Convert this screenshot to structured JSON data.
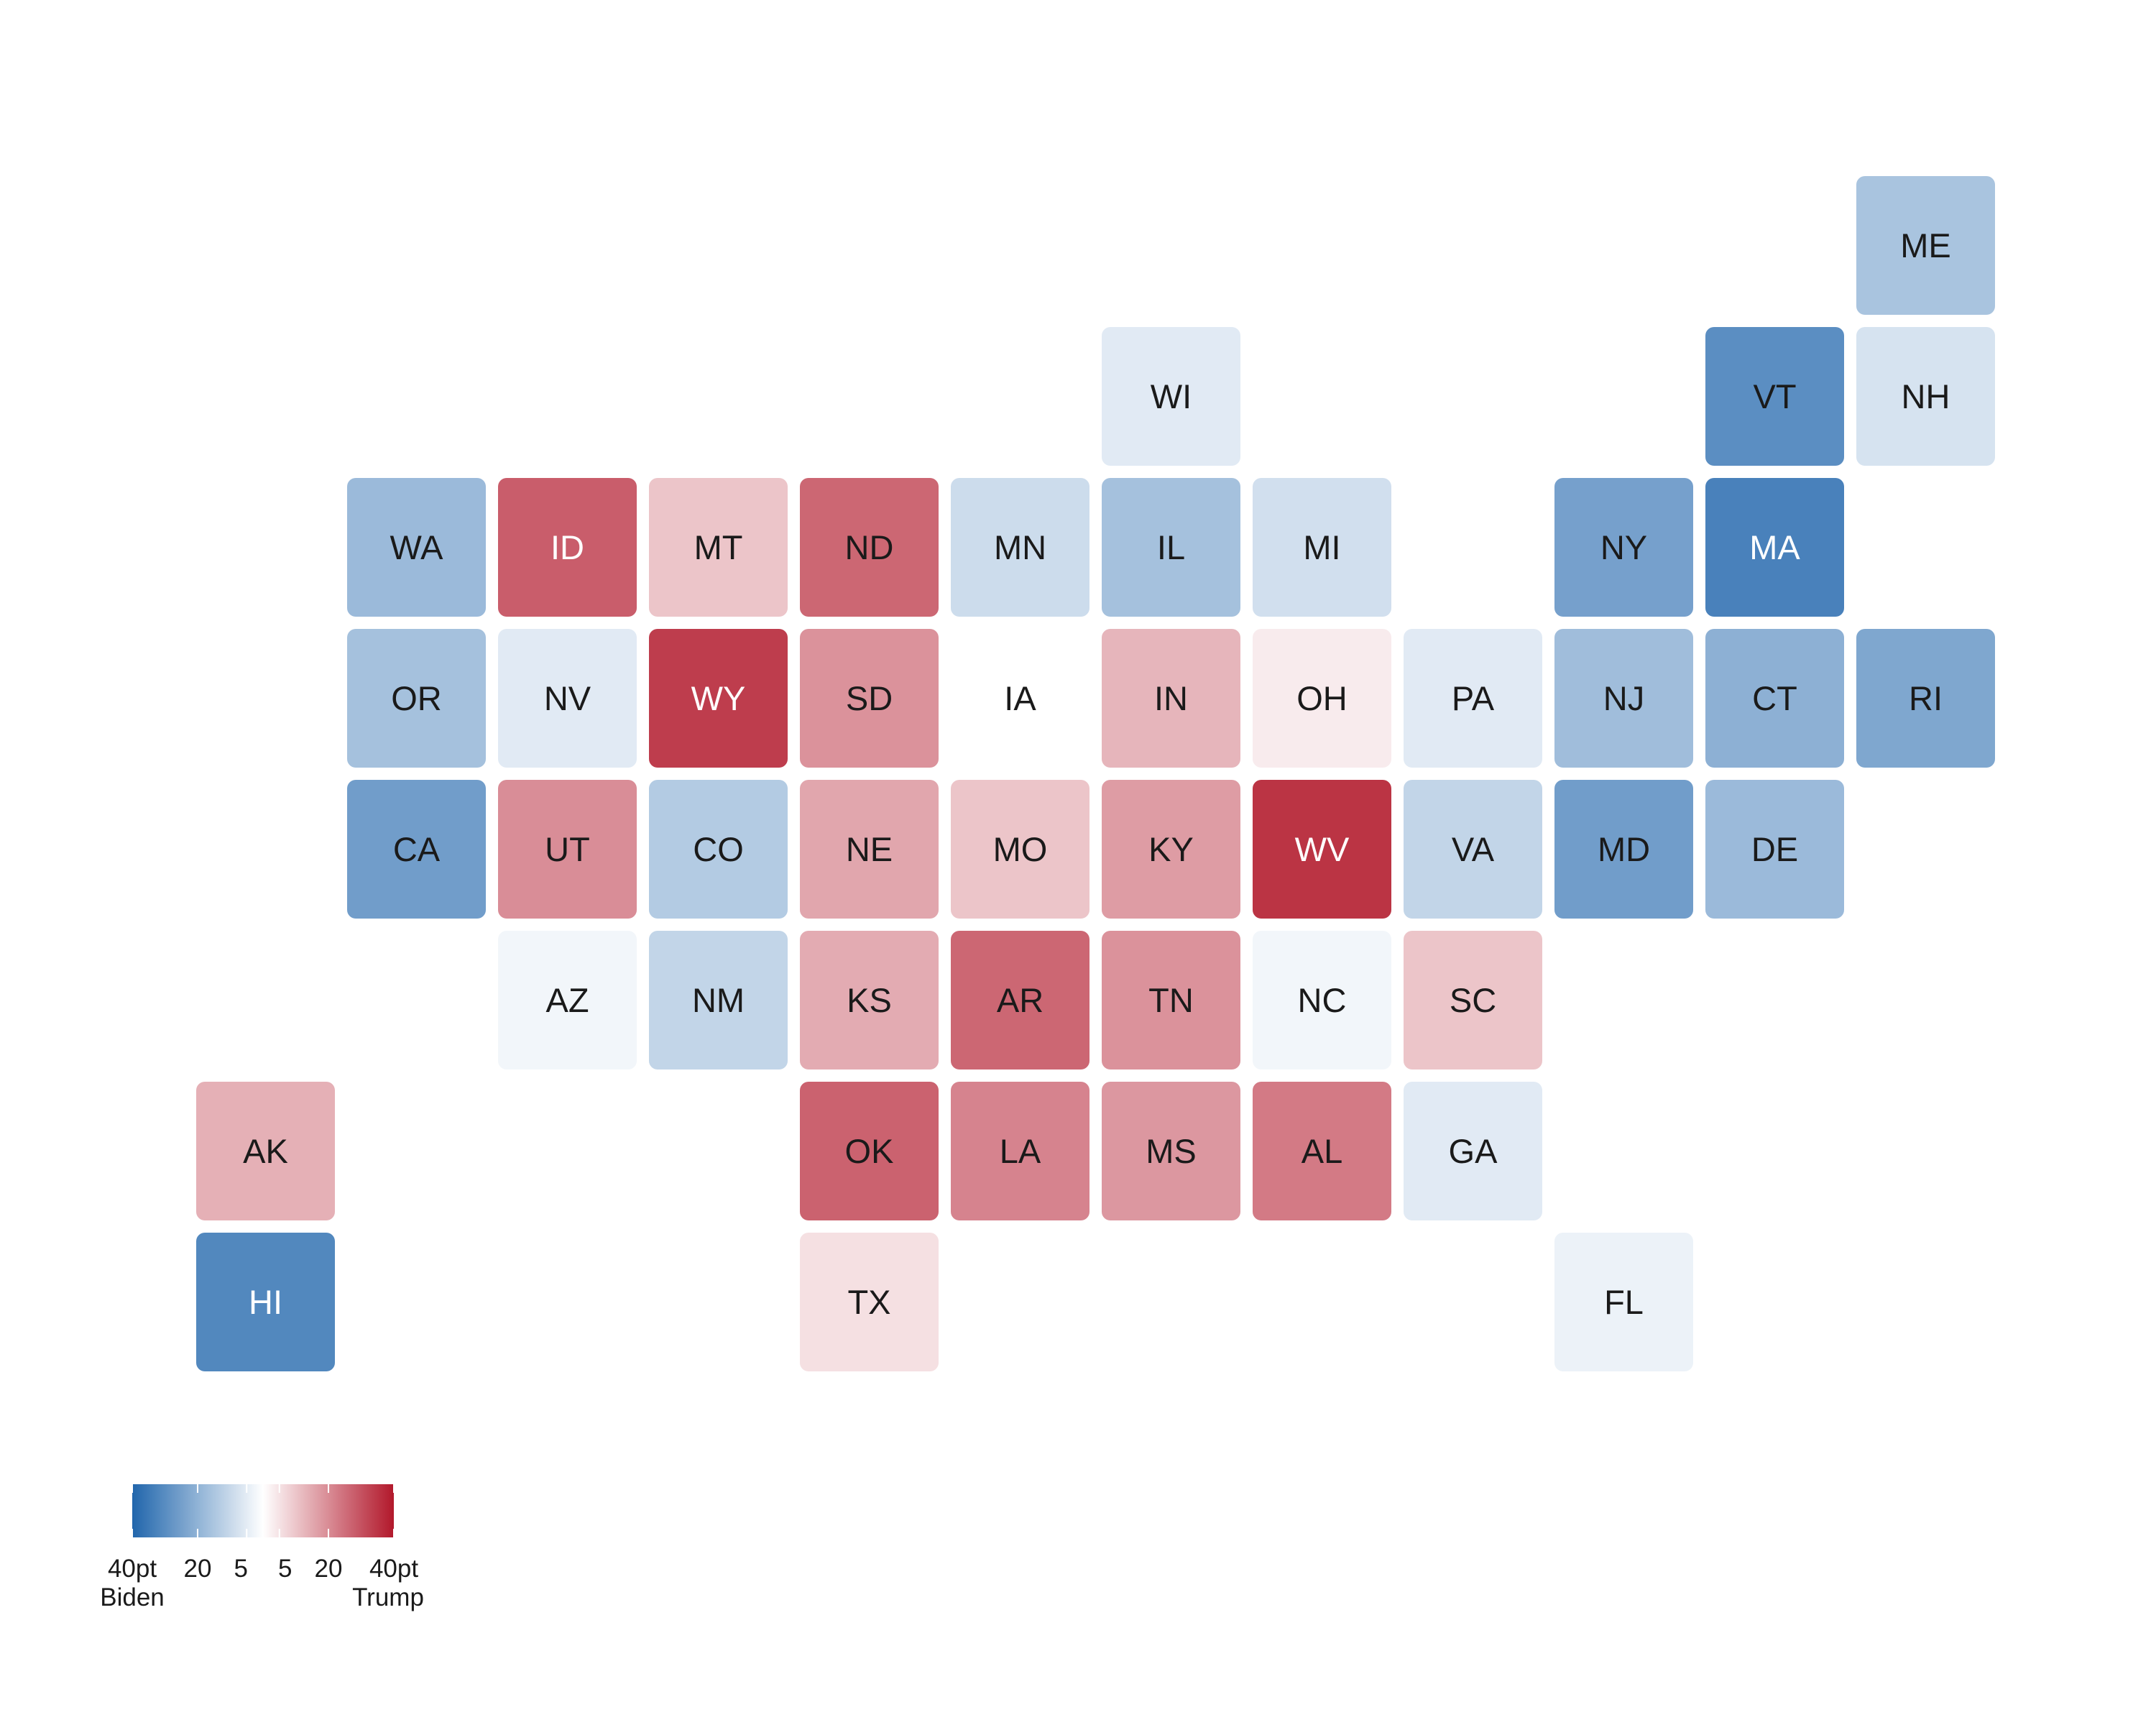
{
  "map_data": {
    "type": "tile-grid-choropleth",
    "value_meaning": "margin in points; negative = Biden, positive = Trump",
    "color_scale": {
      "min": -40,
      "max": 40,
      "low_color": "#2166ac",
      "mid_color": "#ffffff",
      "high_color": "#b2182b"
    },
    "tiles": [
      {
        "abbr": "ME",
        "col": 11,
        "row": 0,
        "value": -16
      },
      {
        "abbr": "WI",
        "col": 6,
        "row": 1,
        "value": -5
      },
      {
        "abbr": "VT",
        "col": 10,
        "row": 1,
        "value": -33
      },
      {
        "abbr": "NH",
        "col": 11,
        "row": 1,
        "value": -7
      },
      {
        "abbr": "WA",
        "col": 1,
        "row": 2,
        "value": -19
      },
      {
        "abbr": "ID",
        "col": 2,
        "row": 2,
        "value": 31
      },
      {
        "abbr": "MT",
        "col": 3,
        "row": 2,
        "value": 10
      },
      {
        "abbr": "ND",
        "col": 4,
        "row": 2,
        "value": 29
      },
      {
        "abbr": "MN",
        "col": 5,
        "row": 2,
        "value": -9
      },
      {
        "abbr": "IL",
        "col": 6,
        "row": 2,
        "value": -17
      },
      {
        "abbr": "MI",
        "col": 7,
        "row": 2,
        "value": -8
      },
      {
        "abbr": "NY",
        "col": 9,
        "row": 2,
        "value": -27
      },
      {
        "abbr": "MA",
        "col": 10,
        "row": 2,
        "value": -37
      },
      {
        "abbr": "OR",
        "col": 1,
        "row": 3,
        "value": -17
      },
      {
        "abbr": "NV",
        "col": 2,
        "row": 3,
        "value": -5
      },
      {
        "abbr": "WY",
        "col": 3,
        "row": 3,
        "value": 38
      },
      {
        "abbr": "SD",
        "col": 4,
        "row": 3,
        "value": 20
      },
      {
        "abbr": "IA",
        "col": 5,
        "row": 3,
        "value": 0
      },
      {
        "abbr": "IN",
        "col": 6,
        "row": 3,
        "value": 13
      },
      {
        "abbr": "OH",
        "col": 7,
        "row": 3,
        "value": 3
      },
      {
        "abbr": "PA",
        "col": 8,
        "row": 3,
        "value": -5
      },
      {
        "abbr": "NJ",
        "col": 9,
        "row": 3,
        "value": -18
      },
      {
        "abbr": "CT",
        "col": 10,
        "row": 3,
        "value": -22
      },
      {
        "abbr": "RI",
        "col": 11,
        "row": 3,
        "value": -25
      },
      {
        "abbr": "CA",
        "col": 1,
        "row": 4,
        "value": -28
      },
      {
        "abbr": "UT",
        "col": 2,
        "row": 4,
        "value": 21
      },
      {
        "abbr": "CO",
        "col": 3,
        "row": 4,
        "value": -14
      },
      {
        "abbr": "NE",
        "col": 4,
        "row": 4,
        "value": 16
      },
      {
        "abbr": "MO",
        "col": 5,
        "row": 4,
        "value": 10
      },
      {
        "abbr": "KY",
        "col": 6,
        "row": 4,
        "value": 18
      },
      {
        "abbr": "WV",
        "col": 7,
        "row": 4,
        "value": 40
      },
      {
        "abbr": "VA",
        "col": 8,
        "row": 4,
        "value": -11
      },
      {
        "abbr": "MD",
        "col": 9,
        "row": 4,
        "value": -28
      },
      {
        "abbr": "DE",
        "col": 10,
        "row": 4,
        "value": -19
      },
      {
        "abbr": "AZ",
        "col": 2,
        "row": 5,
        "value": -2
      },
      {
        "abbr": "NM",
        "col": 3,
        "row": 5,
        "value": -11
      },
      {
        "abbr": "KS",
        "col": 4,
        "row": 5,
        "value": 15
      },
      {
        "abbr": "AR",
        "col": 5,
        "row": 5,
        "value": 29
      },
      {
        "abbr": "TN",
        "col": 6,
        "row": 5,
        "value": 20
      },
      {
        "abbr": "NC",
        "col": 7,
        "row": 5,
        "value": -2
      },
      {
        "abbr": "SC",
        "col": 8,
        "row": 5,
        "value": 10
      },
      {
        "abbr": "AK",
        "col": 0,
        "row": 6,
        "value": 14
      },
      {
        "abbr": "OK",
        "col": 4,
        "row": 6,
        "value": 30
      },
      {
        "abbr": "LA",
        "col": 5,
        "row": 6,
        "value": 23
      },
      {
        "abbr": "MS",
        "col": 6,
        "row": 6,
        "value": 19
      },
      {
        "abbr": "AL",
        "col": 7,
        "row": 6,
        "value": 25
      },
      {
        "abbr": "GA",
        "col": 8,
        "row": 6,
        "value": -5
      },
      {
        "abbr": "HI",
        "col": 0,
        "row": 7,
        "value": -35
      },
      {
        "abbr": "TX",
        "col": 4,
        "row": 7,
        "value": 5
      },
      {
        "abbr": "FL",
        "col": 9,
        "row": 7,
        "value": -3
      }
    ]
  },
  "legend": {
    "ticks": [
      {
        "value": -40,
        "label": "40pt"
      },
      {
        "value": -20,
        "label": "20"
      },
      {
        "value": -5,
        "label": "5"
      },
      {
        "value": 5,
        "label": "5"
      },
      {
        "value": 20,
        "label": "20"
      },
      {
        "value": 40,
        "label": "40pt"
      }
    ],
    "left_label": "Biden",
    "right_label": "Trump"
  }
}
